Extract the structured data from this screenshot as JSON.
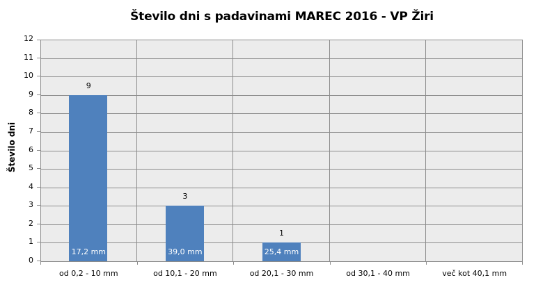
{
  "chart_data": {
    "type": "bar",
    "title": "Število dni s padavinami  MAREC 2016 - VP Žiri",
    "xlabel": "",
    "ylabel": "Število dni",
    "ylim": [
      0,
      12
    ],
    "yticks": [
      "0",
      "1",
      "2",
      "3",
      "4",
      "5",
      "6",
      "7",
      "8",
      "9",
      "10",
      "11",
      "12"
    ],
    "categories": [
      "od 0,2 - 10 mm",
      "od 10,1 - 20 mm",
      "od 20,1 - 30 mm",
      "od 30,1 - 40 mm",
      "več kot 40,1 mm"
    ],
    "values": [
      9,
      3,
      1,
      0,
      0
    ],
    "data_labels": [
      "9",
      "3",
      "1",
      "",
      ""
    ],
    "inner_labels": [
      "17,2 mm",
      "39,0 mm",
      "25,4 mm",
      "",
      ""
    ],
    "grid": true,
    "legend": "none",
    "bar_color": "#4f81bd",
    "plot_bg": "#ececec"
  }
}
